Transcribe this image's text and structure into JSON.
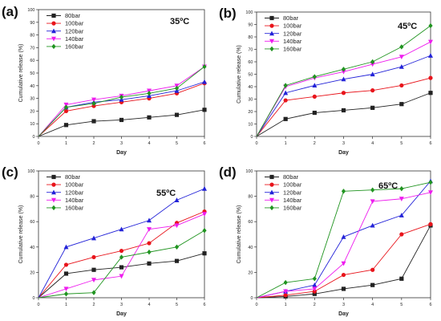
{
  "chart_data": [
    {
      "type": "line",
      "panel_label": "(a)",
      "annotation": "35ºC",
      "xlabel": "Day",
      "ylabel": "Cumulative release (%)",
      "xlim": [
        0,
        6
      ],
      "ylim": [
        0,
        100
      ],
      "xticks": [
        0,
        1,
        2,
        3,
        4,
        5,
        6
      ],
      "yticks": [
        0,
        10,
        20,
        30,
        40,
        50,
        60,
        70,
        80,
        90,
        100
      ],
      "legend_position": "top-left",
      "x": [
        0,
        1,
        2,
        3,
        4,
        5,
        6
      ],
      "series": [
        {
          "name": "80bar",
          "color": "#222222",
          "marker": "square",
          "values": [
            0,
            9,
            12,
            13,
            15,
            17,
            21
          ]
        },
        {
          "name": "100bar",
          "color": "#e8141b",
          "marker": "circle",
          "values": [
            0,
            20,
            24,
            27,
            30,
            34,
            42
          ]
        },
        {
          "name": "120bar",
          "color": "#2323d8",
          "marker": "triangle-up",
          "values": [
            0,
            23,
            27,
            29,
            32,
            36,
            43
          ]
        },
        {
          "name": "140bar",
          "color": "#ee1cee",
          "marker": "triangle-down",
          "values": [
            0,
            25,
            29,
            32,
            36,
            40,
            55
          ]
        },
        {
          "name": "160bar",
          "color": "#209420",
          "marker": "diamond",
          "values": [
            0,
            23,
            26,
            31,
            34,
            38,
            55
          ]
        }
      ]
    },
    {
      "type": "line",
      "panel_label": "(b)",
      "annotation": "45ºC",
      "xlabel": "Day",
      "ylabel": "Cumulative release (%)",
      "xlim": [
        0,
        6
      ],
      "ylim": [
        0,
        100
      ],
      "xticks": [
        0,
        1,
        2,
        3,
        4,
        5,
        6
      ],
      "yticks": [
        0,
        10,
        20,
        30,
        40,
        50,
        60,
        70,
        80,
        90,
        100
      ],
      "legend_position": "top-left",
      "x": [
        0,
        1,
        2,
        3,
        4,
        5,
        6
      ],
      "series": [
        {
          "name": "80bar",
          "color": "#222222",
          "marker": "square",
          "values": [
            0,
            14,
            19,
            21,
            23,
            26,
            35
          ]
        },
        {
          "name": "100bar",
          "color": "#e8141b",
          "marker": "circle",
          "values": [
            0,
            29,
            32,
            35,
            37,
            41,
            47
          ]
        },
        {
          "name": "120bar",
          "color": "#2323d8",
          "marker": "triangle-up",
          "values": [
            0,
            35,
            41,
            46,
            50,
            56,
            65
          ]
        },
        {
          "name": "140bar",
          "color": "#ee1cee",
          "marker": "triangle-down",
          "values": [
            0,
            40,
            47,
            52,
            58,
            64,
            76
          ]
        },
        {
          "name": "160bar",
          "color": "#209420",
          "marker": "diamond",
          "values": [
            0,
            41,
            48,
            54,
            60,
            72,
            89
          ]
        }
      ]
    },
    {
      "type": "line",
      "panel_label": "(c)",
      "annotation": "55ºC",
      "xlabel": "Day",
      "ylabel": "Cumulative release (%)",
      "xlim": [
        0,
        6
      ],
      "ylim": [
        0,
        100
      ],
      "xticks": [
        0,
        1,
        2,
        3,
        4,
        5,
        6
      ],
      "yticks": [
        0,
        20,
        40,
        60,
        80,
        100
      ],
      "legend_position": "top-left",
      "x": [
        0,
        1,
        2,
        3,
        4,
        5,
        6
      ],
      "series": [
        {
          "name": "80bar",
          "color": "#222222",
          "marker": "square",
          "values": [
            0,
            19,
            22,
            24,
            27,
            29,
            35
          ]
        },
        {
          "name": "100bar",
          "color": "#e8141b",
          "marker": "circle",
          "values": [
            0,
            26,
            32,
            37,
            43,
            59,
            68
          ]
        },
        {
          "name": "120bar",
          "color": "#2323d8",
          "marker": "triangle-up",
          "values": [
            0,
            40,
            47,
            54,
            61,
            77,
            86
          ]
        },
        {
          "name": "140bar",
          "color": "#ee1cee",
          "marker": "triangle-down",
          "values": [
            0,
            7,
            14,
            17,
            54,
            57,
            66
          ]
        },
        {
          "name": "160bar",
          "color": "#209420",
          "marker": "diamond",
          "values": [
            0,
            3,
            4,
            32,
            36,
            40,
            53
          ]
        }
      ]
    },
    {
      "type": "line",
      "panel_label": "(d)",
      "annotation": "65ºC",
      "xlabel": "Day",
      "ylabel": "Cumulative release (%)",
      "xlim": [
        0,
        6
      ],
      "ylim": [
        0,
        100
      ],
      "xticks": [
        0,
        1,
        2,
        3,
        4,
        5,
        6
      ],
      "yticks": [
        0,
        20,
        40,
        60,
        80,
        100
      ],
      "legend_position": "top-left",
      "x": [
        0,
        1,
        2,
        3,
        4,
        5,
        6
      ],
      "series": [
        {
          "name": "80bar",
          "color": "#222222",
          "marker": "square",
          "values": [
            0,
            1,
            3,
            7,
            10,
            15,
            57
          ]
        },
        {
          "name": "100bar",
          "color": "#e8141b",
          "marker": "circle",
          "values": [
            0,
            2,
            5,
            18,
            22,
            50,
            58
          ]
        },
        {
          "name": "120bar",
          "color": "#2323d8",
          "marker": "triangle-up",
          "values": [
            0,
            5,
            10,
            48,
            57,
            65,
            92
          ]
        },
        {
          "name": "140bar",
          "color": "#ee1cee",
          "marker": "triangle-down",
          "values": [
            0,
            5,
            7,
            27,
            76,
            78,
            83
          ]
        },
        {
          "name": "160bar",
          "color": "#209420",
          "marker": "diamond",
          "values": [
            0,
            12,
            15,
            84,
            85,
            86,
            91
          ]
        }
      ]
    }
  ]
}
